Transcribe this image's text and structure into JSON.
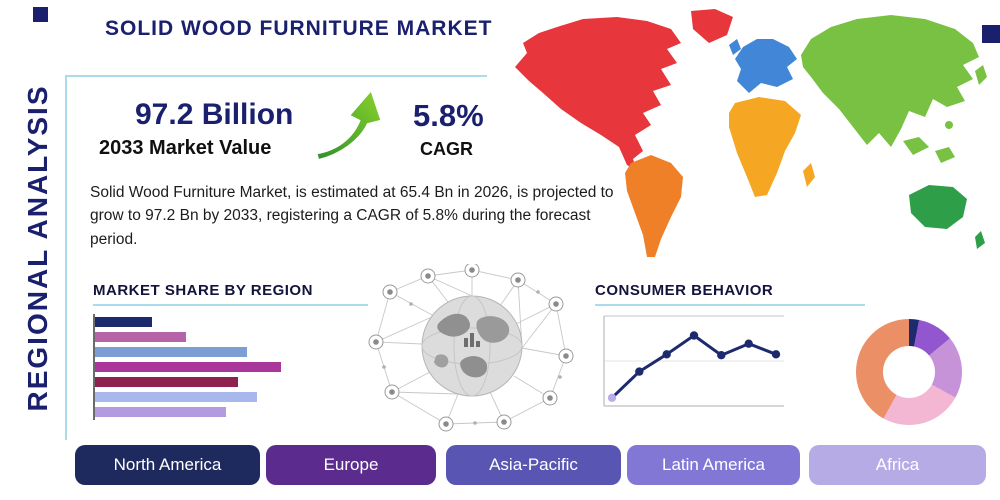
{
  "page": {
    "title": "SOLID WOOD FURNITURE MARKET",
    "side_label": "REGIONAL ANALYSIS"
  },
  "stats": {
    "market_value": "97.2 Billion",
    "market_value_caption": "2033 Market Value",
    "cagr_value": "5.8%",
    "cagr_caption": "CAGR"
  },
  "description": "Solid Wood Furniture Market, is estimated at 65.4 Bn in 2026, is projected to grow to 97.2 Bn by 2033, registering a CAGR of 5.8% during the forecast period.",
  "region_buttons": [
    {
      "label": "North America",
      "color": "#1e2a5e"
    },
    {
      "label": "Europe",
      "color": "#5b2c8d"
    },
    {
      "label": "Asia-Pacific",
      "color": "#5956b3"
    },
    {
      "label": "Latin America",
      "color": "#8377d6"
    },
    {
      "label": "Africa",
      "color": "#b7abe6"
    }
  ],
  "map": {
    "continents": [
      {
        "name": "North America",
        "color": "#e8363d"
      },
      {
        "name": "South America",
        "color": "#f08028"
      },
      {
        "name": "Europe",
        "color": "#4286d8"
      },
      {
        "name": "Africa",
        "color": "#f5a623"
      },
      {
        "name": "Asia",
        "color": "#79c143"
      },
      {
        "name": "Australia",
        "color": "#2f9e48"
      }
    ]
  },
  "chart_data": [
    {
      "type": "bar",
      "title": "MARKET SHARE BY REGION",
      "orientation": "horizontal",
      "values": [
        30,
        48,
        80,
        98,
        75,
        85,
        69
      ],
      "xlim": [
        0,
        100
      ],
      "colors": [
        "#1d2b6e",
        "#b565a7",
        "#7b9fd4",
        "#a9379b",
        "#8f2150",
        "#a9b8ec",
        "#b49be0"
      ],
      "grid": false,
      "axis": "left-only, no tick labels"
    },
    {
      "type": "line",
      "title": "CONSUMER BEHAVIOR",
      "x": [
        1,
        2,
        3,
        4,
        5,
        6,
        7
      ],
      "values": [
        1.0,
        4.2,
        6.3,
        8.6,
        6.2,
        7.6,
        6.3
      ],
      "ylim": [
        0,
        10
      ],
      "line_color": "#1d2b6e",
      "marker_color": "#1d2b6e",
      "first_marker_color": "#b9aee8",
      "grid": "horizontal light gray, no tick labels"
    },
    {
      "type": "pie",
      "donut": true,
      "values": [
        3,
        11,
        19,
        25,
        42
      ],
      "colors": [
        "#1d2b6e",
        "#9257cf",
        "#c693d9",
        "#f3b7d4",
        "#eb8f66"
      ],
      "labels_visible": false
    }
  ]
}
